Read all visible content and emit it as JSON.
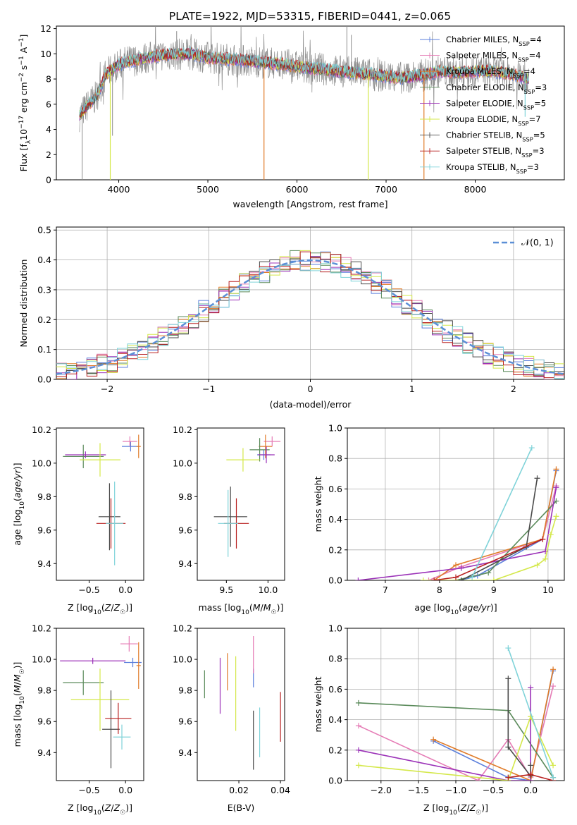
{
  "figure_title": "PLATE=1922, MJD=53315, FIBERID=0441, z=0.065",
  "colors": {
    "series": [
      "#5b7fdc",
      "#e57bb5",
      "#e07b28",
      "#5a8a5a",
      "#9b32b8",
      "#d4e84a",
      "#4a4a4a",
      "#b82020",
      "#7fd3d9"
    ],
    "data_spectrum": "#8c8c8c",
    "normal_curve": "#5b8fd6",
    "grid": "#b0b0b0"
  },
  "chart_data": [
    {
      "type": "line",
      "id": "spectrum",
      "xlabel": "wavelength [Angstrom, rest frame]",
      "ylabel": "Flux [f$_\\lambda$10$^{-17}$ erg cm$^{-2}$ s$^{-1}$ A$^{-1}$]",
      "ylabel_parts": [
        "Flux [f",
        "λ",
        "10",
        "−17",
        " erg cm",
        "−2",
        " s",
        "−1",
        " A",
        "−1",
        "]"
      ],
      "xlim": [
        3300,
        9000
      ],
      "ylim": [
        0,
        12.2
      ],
      "xticks": [
        4000,
        5000,
        6000,
        7000,
        8000
      ],
      "yticks": [
        0,
        2,
        4,
        6,
        8,
        10,
        12
      ],
      "grid": false,
      "legend_position": "top-right",
      "legend": [
        {
          "label": "Chabrier MILES, N",
          "sub": "SSP",
          "tail": "=4"
        },
        {
          "label": "Salpeter MILES, N",
          "sub": "SSP",
          "tail": "=4"
        },
        {
          "label": "Kroupa MILES, N",
          "sub": "SSP",
          "tail": "=4"
        },
        {
          "label": "Chabrier ELODIE, N",
          "sub": "SSP",
          "tail": "=3"
        },
        {
          "label": "Salpeter ELODIE, N",
          "sub": "SSP",
          "tail": "=5"
        },
        {
          "label": "Kroupa ELODIE, N",
          "sub": "SSP",
          "tail": "=7"
        },
        {
          "label": "Chabrier STELIB, N",
          "sub": "SSP",
          "tail": "=5"
        },
        {
          "label": "Salpeter STELIB, N",
          "sub": "SSP",
          "tail": "=3"
        },
        {
          "label": "Kroupa STELIB, N",
          "sub": "SSP",
          "tail": "=3"
        }
      ],
      "continuum_x": [
        3550,
        3650,
        3750,
        3850,
        3950,
        4050,
        4250,
        4500,
        4800,
        5000,
        5200,
        5500,
        5800,
        6100,
        6500,
        6800,
        7000,
        7200,
        7400,
        7600,
        7800,
        8000,
        8200,
        8400,
        8600
      ],
      "continuum_y": [
        5.0,
        5.9,
        6.6,
        8.3,
        8.9,
        9.3,
        9.6,
        9.9,
        10.0,
        9.7,
        9.6,
        9.4,
        9.2,
        8.9,
        8.6,
        8.4,
        8.2,
        8.1,
        8.3,
        8.6,
        8.5,
        8.6,
        8.6,
        8.4,
        8.0
      ],
      "data_spikes": [
        {
          "x": 3590,
          "y": 0.0
        },
        {
          "x": 3930,
          "y": 3.5
        },
        {
          "x": 4650,
          "y": 11.8
        },
        {
          "x": 6560,
          "y": 12.2
        },
        {
          "x": 6610,
          "y": 11.5
        },
        {
          "x": 7420,
          "y": 7.0
        }
      ],
      "model_dips": [
        {
          "x": 3905,
          "y": 0.0,
          "series": 5
        },
        {
          "x": 5630,
          "y": 0.0,
          "series": 2
        },
        {
          "x": 6800,
          "y": 0.0,
          "series": 5
        },
        {
          "x": 7425,
          "y": 0.0,
          "series": 2
        },
        {
          "x": 8560,
          "y": 5.0,
          "series": 8
        }
      ]
    },
    {
      "type": "bar",
      "id": "residual_histograms",
      "xlabel": "(data-model)/error",
      "ylabel": "Normed distribution",
      "xlim": [
        -2.5,
        2.5
      ],
      "ylim": [
        0,
        0.51
      ],
      "xticks": [
        -2,
        -1,
        0,
        1,
        2
      ],
      "yticks": [
        0.0,
        0.1,
        0.2,
        0.3,
        0.4,
        0.5
      ],
      "grid": true,
      "legend_position": "top-right",
      "legend": [
        {
          "label": "𝒩(0, 1)",
          "style": "dashed"
        }
      ],
      "bin_width": 0.1,
      "bin_start": -2.5,
      "n_bins": 50,
      "series_count": 9
    },
    {
      "type": "scatter",
      "id": "age_vs_Z",
      "xlabel": "Z [log₁₀(Z/Z☉)]",
      "ylabel": "age  [log₁₀(age/yr)]",
      "xlim": [
        -0.95,
        0.25
      ],
      "ylim": [
        9.3,
        10.21
      ],
      "xticks": [
        -0.5,
        0.0
      ],
      "yticks": [
        9.4,
        9.6,
        9.8,
        10.0,
        10.2
      ],
      "grid": false,
      "points": [
        {
          "s": 0,
          "x": 0.07,
          "y": 10.1,
          "xerr": 0.12,
          "yerr": 0.03
        },
        {
          "s": 1,
          "x": 0.06,
          "y": 10.13,
          "xerr": 0.1,
          "yerr": 0.03
        },
        {
          "s": 2,
          "x": 0.18,
          "y": 10.1,
          "xerr": 0.03,
          "yerr": 0.07
        },
        {
          "s": 3,
          "x": -0.58,
          "y": 10.04,
          "xerr": 0.28,
          "yerr": 0.07
        },
        {
          "s": 4,
          "x": -0.55,
          "y": 10.05,
          "xerr": 0.28,
          "yerr": 0.02
        },
        {
          "s": 5,
          "x": -0.35,
          "y": 10.02,
          "xerr": 0.28,
          "yerr": 0.1
        },
        {
          "s": 6,
          "x": -0.22,
          "y": 9.68,
          "xerr": 0.15,
          "yerr": 0.2
        },
        {
          "s": 7,
          "x": -0.2,
          "y": 9.64,
          "xerr": 0.2,
          "yerr": 0.15
        },
        {
          "s": 8,
          "x": -0.15,
          "y": 9.64,
          "xerr": 0.12,
          "yerr": 0.25
        }
      ]
    },
    {
      "type": "scatter",
      "id": "age_vs_mass",
      "xlabel": "mass [log₁₀(M/M☉)]",
      "ylabel": "",
      "xlim": [
        9.15,
        10.2
      ],
      "ylim": [
        9.3,
        10.21
      ],
      "xticks": [
        9.5,
        10.0
      ],
      "yticks": [
        9.4,
        9.6,
        9.8,
        10.0,
        10.2
      ],
      "grid": false,
      "points": [
        {
          "s": 0,
          "x": 9.95,
          "y": 10.05,
          "xerr": 0.08,
          "yerr": 0.03
        },
        {
          "s": 1,
          "x": 10.05,
          "y": 10.13,
          "xerr": 0.1,
          "yerr": 0.03
        },
        {
          "s": 2,
          "x": 9.97,
          "y": 10.1,
          "xerr": 0.08,
          "yerr": 0.07
        },
        {
          "s": 3,
          "x": 9.9,
          "y": 10.08,
          "xerr": 0.12,
          "yerr": 0.07
        },
        {
          "s": 4,
          "x": 9.98,
          "y": 10.05,
          "xerr": 0.1,
          "yerr": 0.05
        },
        {
          "s": 5,
          "x": 9.7,
          "y": 10.02,
          "xerr": 0.2,
          "yerr": 0.07
        },
        {
          "s": 6,
          "x": 9.55,
          "y": 9.68,
          "xerr": 0.2,
          "yerr": 0.18
        },
        {
          "s": 7,
          "x": 9.62,
          "y": 9.64,
          "xerr": 0.15,
          "yerr": 0.15
        },
        {
          "s": 8,
          "x": 9.52,
          "y": 9.64,
          "xerr": 0.12,
          "yerr": 0.2
        }
      ]
    },
    {
      "type": "line",
      "id": "massweight_vs_age",
      "xlabel": "age  [log₁₀(age/yr)]",
      "ylabel": "mass weight",
      "xlim": [
        6.3,
        10.3
      ],
      "ylim": [
        0,
        1.0
      ],
      "xticks": [
        7,
        8,
        9,
        10
      ],
      "yticks": [
        0.0,
        0.2,
        0.4,
        0.6,
        0.8,
        1.0
      ],
      "grid": true,
      "series": [
        {
          "s": 0,
          "x": [
            8.4,
            8.7,
            9.9,
            10.15
          ],
          "y": [
            0.0,
            0.03,
            0.27,
            0.72
          ]
        },
        {
          "s": 1,
          "x": [
            7.8,
            8.4,
            9.9,
            10.15
          ],
          "y": [
            0.0,
            0.09,
            0.27,
            0.62
          ]
        },
        {
          "s": 2,
          "x": [
            7.9,
            8.3,
            9.9,
            10.15
          ],
          "y": [
            0.0,
            0.1,
            0.27,
            0.73
          ]
        },
        {
          "s": 3,
          "x": [
            8.3,
            8.9,
            10.15
          ],
          "y": [
            0.0,
            0.05,
            0.52
          ]
        },
        {
          "s": 4,
          "x": [
            6.5,
            8.4,
            9.95,
            10.15
          ],
          "y": [
            0.0,
            0.08,
            0.19,
            0.61
          ]
        },
        {
          "s": 5,
          "x": [
            7.7,
            9.0,
            9.8,
            9.95,
            10.05,
            10.15
          ],
          "y": [
            0.0,
            0.0,
            0.1,
            0.14,
            0.3,
            0.42
          ]
        },
        {
          "s": 6,
          "x": [
            8.4,
            9.6,
            9.8
          ],
          "y": [
            0.0,
            0.22,
            0.67
          ]
        },
        {
          "s": 7,
          "x": [
            7.9,
            8.3,
            9.9
          ],
          "y": [
            0.0,
            0.02,
            0.27
          ]
        },
        {
          "s": 8,
          "x": [
            8.6,
            9.7
          ],
          "y": [
            0.02,
            0.87
          ]
        }
      ]
    },
    {
      "type": "scatter",
      "id": "mass_vs_Z",
      "xlabel": "Z [log₁₀(Z/Z☉)]",
      "ylabel": "mass [log₁₀(M/M☉)]",
      "xlim": [
        -0.95,
        0.25
      ],
      "ylim": [
        9.22,
        10.2
      ],
      "xticks": [
        -0.5,
        0.0
      ],
      "yticks": [
        9.4,
        9.6,
        9.8,
        10.0,
        10.2
      ],
      "grid": false,
      "points": [
        {
          "s": 0,
          "x": 0.1,
          "y": 9.98,
          "xerr": 0.12,
          "yerr": 0.03
        },
        {
          "s": 1,
          "x": 0.05,
          "y": 10.1,
          "xerr": 0.12,
          "yerr": 0.05
        },
        {
          "s": 2,
          "x": 0.18,
          "y": 9.96,
          "xerr": 0.03,
          "yerr": 0.15
        },
        {
          "s": 3,
          "x": -0.58,
          "y": 9.85,
          "xerr": 0.28,
          "yerr": 0.08
        },
        {
          "s": 4,
          "x": -0.45,
          "y": 9.99,
          "xerr": 0.45,
          "yerr": 0.02
        },
        {
          "s": 5,
          "x": -0.35,
          "y": 9.74,
          "xerr": 0.4,
          "yerr": 0.2
        },
        {
          "s": 6,
          "x": -0.2,
          "y": 9.55,
          "xerr": 0.12,
          "yerr": 0.25
        },
        {
          "s": 7,
          "x": -0.1,
          "y": 9.62,
          "xerr": 0.18,
          "yerr": 0.1
        },
        {
          "s": 8,
          "x": -0.05,
          "y": 9.5,
          "xerr": 0.12,
          "yerr": 0.08
        }
      ]
    },
    {
      "type": "scatter",
      "id": "mass_vs_ebv",
      "xlabel": "E(B-V)",
      "ylabel": "",
      "xlim": [
        0.0,
        0.042
      ],
      "ylim": [
        9.22,
        10.2
      ],
      "xticks": [
        0.02,
        0.04
      ],
      "yticks": [
        9.4,
        9.6,
        9.8,
        10.0,
        10.2
      ],
      "grid": false,
      "points": [
        {
          "s": 0,
          "x": 0.027,
          "y": 9.88,
          "xerr": 0.0,
          "yerr": 0.06
        },
        {
          "s": 1,
          "x": 0.027,
          "y": 10.03,
          "xerr": 0.0,
          "yerr": 0.12
        },
        {
          "s": 2,
          "x": 0.0145,
          "y": 9.92,
          "xerr": 0.0,
          "yerr": 0.12
        },
        {
          "s": 3,
          "x": 0.0035,
          "y": 9.84,
          "xerr": 0.0,
          "yerr": 0.09
        },
        {
          "s": 4,
          "x": 0.011,
          "y": 9.83,
          "xerr": 0.0,
          "yerr": 0.18
        },
        {
          "s": 5,
          "x": 0.0185,
          "y": 9.78,
          "xerr": 0.0,
          "yerr": 0.24
        },
        {
          "s": 6,
          "x": 0.027,
          "y": 9.48,
          "xerr": 0.0,
          "yerr": 0.19
        },
        {
          "s": 7,
          "x": 0.04,
          "y": 9.63,
          "xerr": 0.0,
          "yerr": 0.16
        },
        {
          "s": 8,
          "x": 0.03,
          "y": 9.53,
          "xerr": 0.0,
          "yerr": 0.16
        }
      ]
    },
    {
      "type": "line",
      "id": "massweight_vs_Z",
      "xlabel": "Z [log₁₀(Z/Z☉)]",
      "ylabel": "mass weight",
      "xlim": [
        -2.45,
        0.45
      ],
      "ylim": [
        0,
        1.0
      ],
      "xticks": [
        -2.0,
        -1.5,
        -1.0,
        -0.5,
        0.0
      ],
      "yticks": [
        0.0,
        0.2,
        0.4,
        0.6,
        0.8,
        1.0
      ],
      "grid": true,
      "series": [
        {
          "s": 0,
          "x": [
            -1.3,
            -0.3,
            0.0,
            0.3
          ],
          "y": [
            0.26,
            0.02,
            0.0,
            0.72
          ]
        },
        {
          "s": 1,
          "x": [
            -2.3,
            -0.7,
            -0.3,
            0.0,
            0.3
          ],
          "y": [
            0.36,
            0.0,
            0.27,
            0.02,
            0.62
          ]
        },
        {
          "s": 2,
          "x": [
            -1.3,
            0.0,
            0.3
          ],
          "y": [
            0.27,
            0.0,
            0.73
          ]
        },
        {
          "s": 3,
          "x": [
            -2.3,
            -0.3,
            0.3
          ],
          "y": [
            0.51,
            0.46,
            0.02
          ]
        },
        {
          "s": 4,
          "x": [
            -2.3,
            -0.3,
            0.0,
            0.0
          ],
          "y": [
            0.2,
            0.0,
            0.0,
            0.61
          ]
        },
        {
          "s": 5,
          "x": [
            -2.3,
            -0.3,
            0.0,
            0.3
          ],
          "y": [
            0.1,
            0.0,
            0.42,
            0.1
          ]
        },
        {
          "s": 6,
          "x": [
            -0.3,
            -0.3,
            0.0,
            0.0
          ],
          "y": [
            0.67,
            0.22,
            0.03,
            0.1
          ]
        },
        {
          "s": 7,
          "x": [
            -0.3,
            0.0,
            0.3
          ],
          "y": [
            0.02,
            0.04,
            0.0
          ]
        },
        {
          "s": 8,
          "x": [
            -0.3,
            0.3
          ],
          "y": [
            0.87,
            0.02
          ]
        }
      ]
    }
  ]
}
